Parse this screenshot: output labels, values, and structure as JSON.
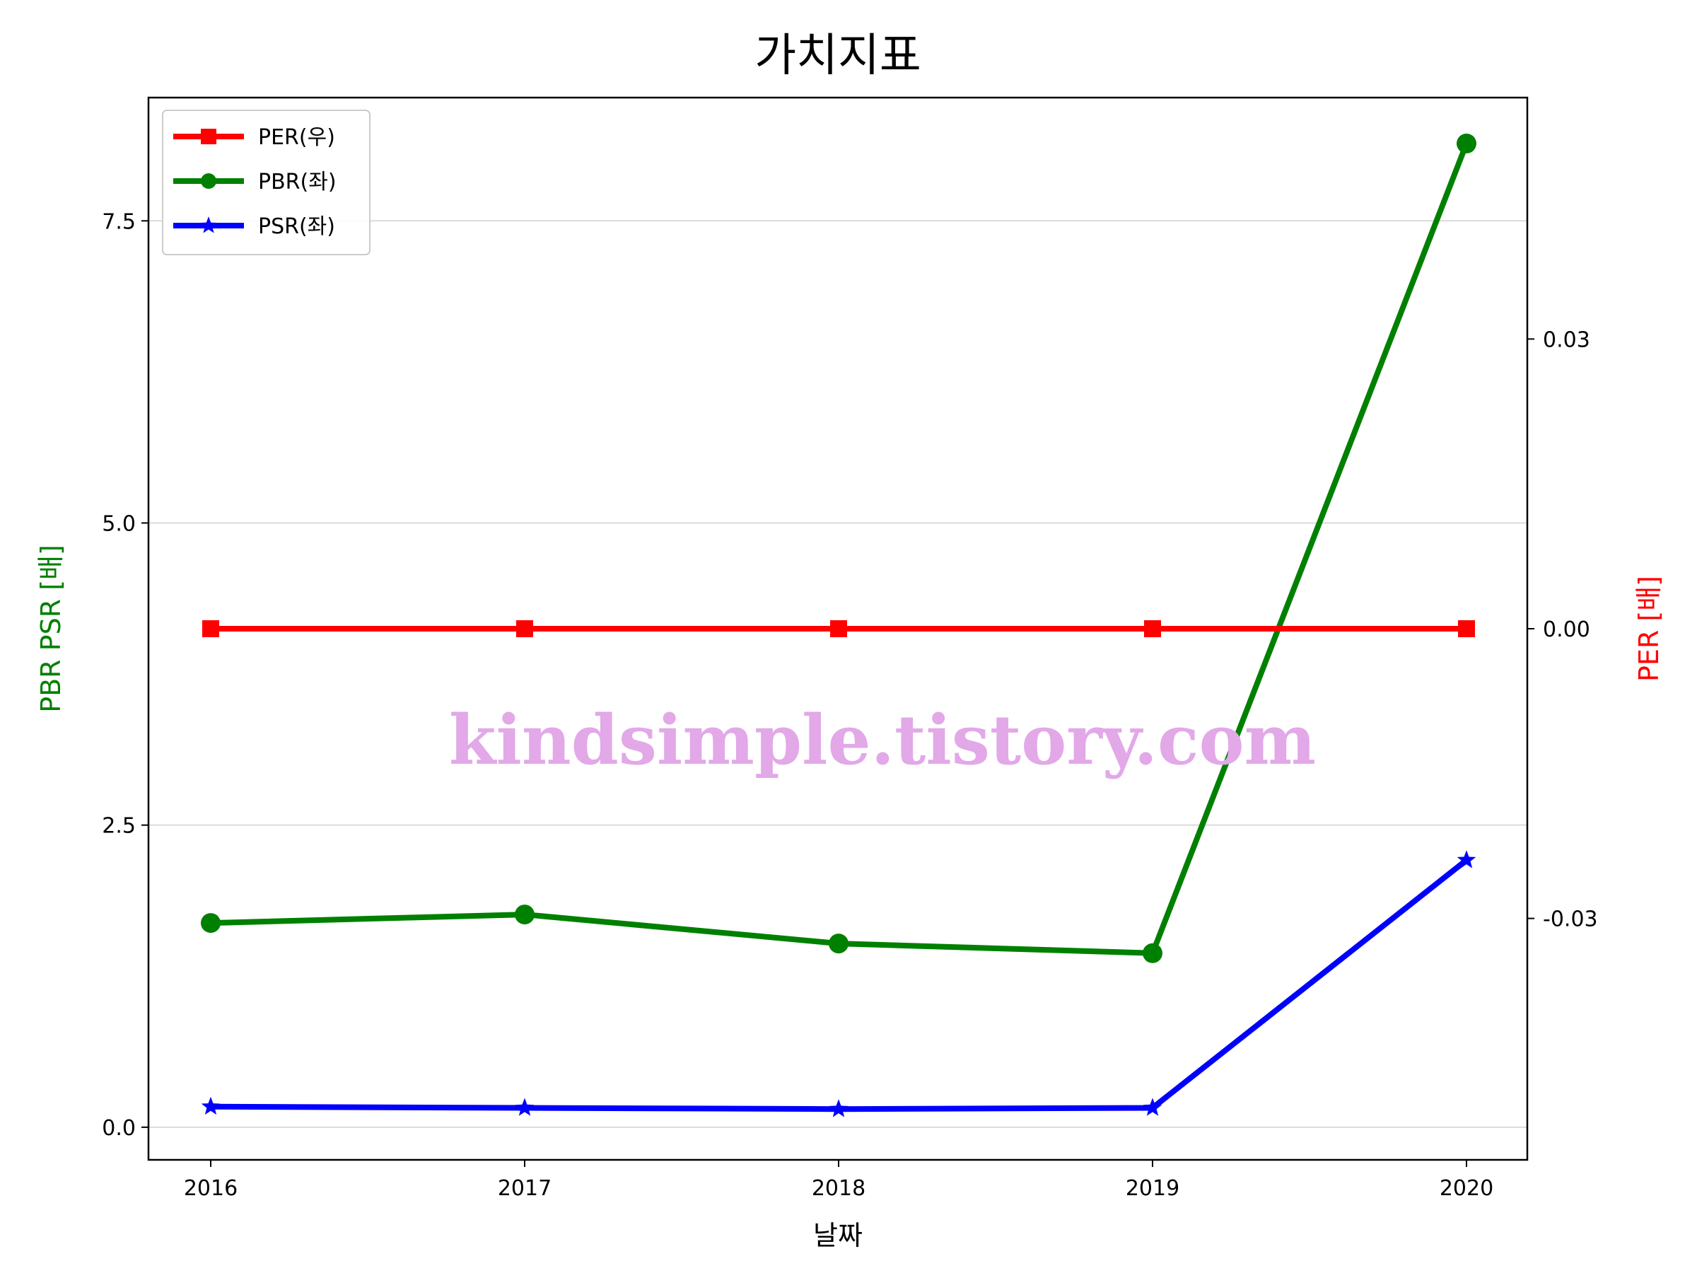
{
  "chart_data": {
    "type": "line",
    "title": "가치지표",
    "xlabel": "날짜",
    "ylabel_left": "PBR PSR [배]",
    "ylabel_right": "PER [배]",
    "x": [
      "2016",
      "2017",
      "2018",
      "2019",
      "2020"
    ],
    "ylim_left": [
      -0.27,
      8.52
    ],
    "ylim_right": [
      -0.055,
      0.055
    ],
    "left_ticks": [
      "0.0",
      "2.5",
      "5.0",
      "7.5"
    ],
    "left_tick_values": [
      0,
      2.5,
      5.0,
      7.5
    ],
    "right_ticks": [
      "-0.03",
      "0.00",
      "0.03"
    ],
    "right_tick_values": [
      -0.03,
      0,
      0.03
    ],
    "grid": "horizontal",
    "legend_position": "top-left",
    "series": [
      {
        "name": "PER(우)",
        "axis": "right",
        "color": "#ff0000",
        "marker": "square",
        "values": [
          0,
          0,
          0,
          0,
          0
        ]
      },
      {
        "name": "PBR(좌)",
        "axis": "left",
        "color": "#008000",
        "marker": "circle",
        "values": [
          1.69,
          1.76,
          1.52,
          1.44,
          8.14
        ]
      },
      {
        "name": "PSR(좌)",
        "axis": "left",
        "color": "#0000ff",
        "marker": "star",
        "values": [
          0.17,
          0.16,
          0.15,
          0.16,
          2.21
        ]
      }
    ]
  },
  "watermark": {
    "text": "kindsimple.tistory.com",
    "color": "#e2a8e8"
  },
  "colors": {
    "left_axis_label": "#008000",
    "right_axis_label": "#ff0000"
  }
}
